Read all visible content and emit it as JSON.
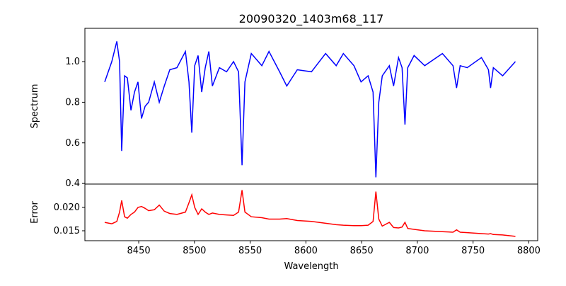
{
  "chart_data": {
    "type": "line",
    "title": "20090320_1403m68_117",
    "xlabel": "Wavelength",
    "xlim": [
      8401.7,
      8808
    ],
    "xticks": [
      8450,
      8500,
      8550,
      8600,
      8650,
      8700,
      8750,
      8800
    ],
    "x": [
      8419.5,
      8425.8,
      8430.3,
      8432.8,
      8434.7,
      8437.3,
      8439.8,
      8443.0,
      8446.2,
      8449.3,
      8452.5,
      8455.7,
      8458.9,
      8464.0,
      8468.4,
      8472.9,
      8477.9,
      8484.3,
      8491.9,
      8495.1,
      8497.6,
      8500.2,
      8503.3,
      8506.5,
      8509.7,
      8512.9,
      8516.1,
      8522.4,
      8528.8,
      8535.1,
      8539.6,
      8542.7,
      8545.3,
      8551.0,
      8560.5,
      8566.9,
      8576.4,
      8582.8,
      8592.3,
      8605.0,
      8617.7,
      8627.2,
      8633.6,
      8643.1,
      8649.5,
      8655.8,
      8660.3,
      8662.8,
      8665.4,
      8668.5,
      8674.9,
      8678.7,
      8683.1,
      8686.3,
      8688.9,
      8691.4,
      8697.1,
      8706.6,
      8722.5,
      8732.0,
      8735.2,
      8738.4,
      8744.8,
      8757.5,
      8763.8,
      8765.7,
      8768.2,
      8776.5,
      8788.0
    ],
    "panels": [
      {
        "name": "Spectrum",
        "ylabel": "Spectrum",
        "ylim": [
          0.397,
          1.164
        ],
        "yticks": [
          0.4,
          0.6,
          0.8,
          1.0
        ],
        "ytick_labels": [
          "0.4",
          "0.6",
          "0.8",
          "1.0"
        ],
        "color": "#0000ff",
        "values": [
          0.9,
          1.0,
          1.1,
          1.0,
          0.56,
          0.93,
          0.92,
          0.76,
          0.85,
          0.9,
          0.72,
          0.78,
          0.8,
          0.9,
          0.8,
          0.88,
          0.96,
          0.97,
          1.05,
          0.9,
          0.65,
          0.98,
          1.03,
          0.85,
          0.97,
          1.05,
          0.88,
          0.97,
          0.95,
          1.0,
          0.95,
          0.49,
          0.9,
          1.04,
          0.98,
          1.05,
          0.95,
          0.88,
          0.96,
          0.95,
          1.04,
          0.98,
          1.04,
          0.98,
          0.9,
          0.93,
          0.85,
          0.43,
          0.8,
          0.93,
          0.98,
          0.88,
          1.02,
          0.97,
          0.69,
          0.97,
          1.03,
          0.98,
          1.04,
          0.98,
          0.87,
          0.98,
          0.97,
          1.02,
          0.96,
          0.87,
          0.97,
          0.93,
          1.0
        ]
      },
      {
        "name": "Error",
        "ylabel": "Error",
        "ylim": [
          0.01288,
          0.025
        ],
        "yticks": [
          0.015,
          0.02
        ],
        "ytick_labels": [
          "0.015",
          "0.020"
        ],
        "color": "#ff0000",
        "values": [
          0.0168,
          0.0165,
          0.017,
          0.019,
          0.0215,
          0.018,
          0.0177,
          0.0185,
          0.019,
          0.02,
          0.0202,
          0.0198,
          0.0193,
          0.0195,
          0.0205,
          0.0192,
          0.0187,
          0.0185,
          0.019,
          0.021,
          0.0227,
          0.02,
          0.0185,
          0.0197,
          0.019,
          0.0185,
          0.0188,
          0.0185,
          0.0184,
          0.0183,
          0.019,
          0.0237,
          0.019,
          0.018,
          0.0178,
          0.0175,
          0.0175,
          0.0176,
          0.0172,
          0.017,
          0.0166,
          0.0163,
          0.0162,
          0.0161,
          0.0161,
          0.0162,
          0.017,
          0.0234,
          0.0175,
          0.016,
          0.0168,
          0.0157,
          0.0156,
          0.0158,
          0.0168,
          0.0155,
          0.0153,
          0.015,
          0.0148,
          0.0147,
          0.0152,
          0.0147,
          0.0146,
          0.0144,
          0.0143,
          0.0144,
          0.0142,
          0.0141,
          0.0138
        ]
      }
    ]
  }
}
